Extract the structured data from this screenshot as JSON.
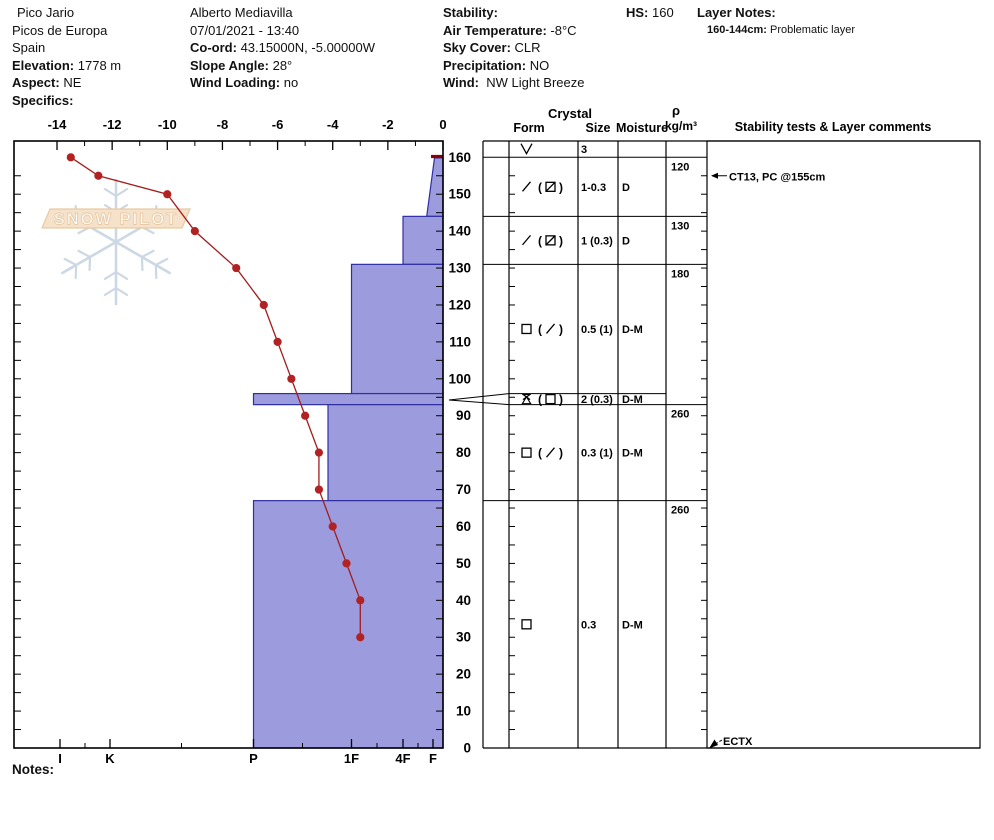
{
  "header": {
    "col1": {
      "line1": "Pico Jario",
      "line2": "Picos de Europa",
      "line3": "Spain",
      "elevation_label": "Elevation:",
      "elevation_value": "1778 m",
      "aspect_label": "Aspect:",
      "aspect_value": "NE",
      "specifics_label": "Specifics:"
    },
    "col2": {
      "observer": "Alberto Mediavilla",
      "datetime": "07/01/2021 - 13:40",
      "coord_label": "Co-ord:",
      "coord_value": "43.15000N, -5.00000W",
      "slope_label": "Slope Angle:",
      "slope_value": "28°",
      "windload_label": "Wind Loading:",
      "windload_value": "no"
    },
    "col3": {
      "stability_label": "Stability:",
      "airtemp_label": "Air Temperature:",
      "airtemp_value": "-8°C",
      "sky_label": "Sky Cover:",
      "sky_value": "CLR",
      "precip_label": "Precipitation:",
      "precip_value": "NO",
      "wind_label": "Wind:",
      "wind_value": "NW Light Breeze"
    },
    "hs_label": "HS:",
    "hs_value": "160",
    "layernotes_label": "Layer Notes:",
    "layernote_range": "160-144cm:",
    "layernote_text": "Problematic layer"
  },
  "notes_label": "Notes:",
  "watermark_text": "SNOW PILOT",
  "chart_data": {
    "type": "snow-profile",
    "title": "Snow pit profile with temperature, hardness, crystal and density data",
    "depth_axis": {
      "unit": "cm",
      "min": 0,
      "max": 160,
      "tick_step": 10
    },
    "temperature_axis": {
      "unit": "°C",
      "ticks": [
        -14,
        -12,
        -10,
        -8,
        -6,
        -4,
        -2,
        0
      ]
    },
    "hardness_axis": {
      "ticks": [
        "I",
        "K",
        "P",
        "1F",
        "4F",
        "F"
      ]
    },
    "temperature_profile": {
      "depth_cm": [
        160,
        155,
        150,
        140,
        130,
        120,
        110,
        100,
        90,
        80,
        70,
        60,
        50,
        40,
        30
      ],
      "temp_c": [
        -13.5,
        -12.5,
        -10,
        -9,
        -7.5,
        -6.5,
        -6,
        -5.5,
        -5,
        -4.5,
        -4.5,
        -4,
        -3.5,
        -3,
        -3
      ]
    },
    "surface_row": {
      "form": "SH",
      "form_icon": "sh",
      "size_mm": "3"
    },
    "layers": [
      {
        "top_cm": 160,
        "bottom_cm": 144,
        "hardness": "F",
        "form_main": "df-slash",
        "form_paren": "fc-square-slash",
        "size_mm": "1-0.3",
        "moisture": "D"
      },
      {
        "top_cm": 144,
        "bottom_cm": 131,
        "hardness": "4F",
        "form_main": "df-slash",
        "form_paren": "fc-square-slash",
        "size_mm": "1 (0.3)",
        "moisture": "D"
      },
      {
        "top_cm": 131,
        "bottom_cm": 96,
        "hardness": "1F",
        "form_main": "fc-square",
        "form_paren": "df-slash",
        "size_mm": "0.5 (1)",
        "moisture": "D-M"
      },
      {
        "top_cm": 96,
        "bottom_cm": 93,
        "hardness": "P",
        "form_main": "dh-star",
        "form_paren": "fc-square",
        "size_mm": "2 (0.3)",
        "moisture": "D-M",
        "flagged": true
      },
      {
        "top_cm": 93,
        "bottom_cm": 67,
        "hardness": "P-1F",
        "form_main": "fc-square",
        "form_paren": "df-slash",
        "size_mm": "0.3 (1)",
        "moisture": "D-M"
      },
      {
        "top_cm": 67,
        "bottom_cm": 0,
        "hardness": "P",
        "form_main": "fc-square",
        "form_paren": null,
        "size_mm": "0.3",
        "moisture": "D-M"
      }
    ],
    "density_cells": [
      {
        "top_cm": 160,
        "bottom_cm": 144,
        "value": "120"
      },
      {
        "top_cm": 144,
        "bottom_cm": 131,
        "value": "130"
      },
      {
        "top_cm": 131,
        "bottom_cm": 93,
        "value": "180"
      },
      {
        "top_cm": 93,
        "bottom_cm": 67,
        "value": "260"
      },
      {
        "top_cm": 67,
        "bottom_cm": 0,
        "value": "260"
      }
    ],
    "table_headers": {
      "crystal": "Crystal",
      "form": "Form",
      "size": "Size",
      "moisture": "Moisture",
      "rho": "ρ",
      "rho_unit": "kg/m³",
      "stability": "Stability tests & Layer comments"
    },
    "tests": [
      {
        "label": "CT13, PC @155cm",
        "depth_cm": 155
      },
      {
        "label": "ECTX",
        "depth_cm": 0
      }
    ],
    "colors": {
      "bar_fill": "#9b9bdd",
      "bar_border": "#2f2fa2",
      "temp_line": "#a31d1d",
      "temp_dot": "#b22222",
      "surface_marker": "#8e0000",
      "watermark_flake": "#ccd8e4",
      "watermark_band_fill": "#f6e2ca",
      "watermark_band_border": "#e8c9a3"
    }
  }
}
